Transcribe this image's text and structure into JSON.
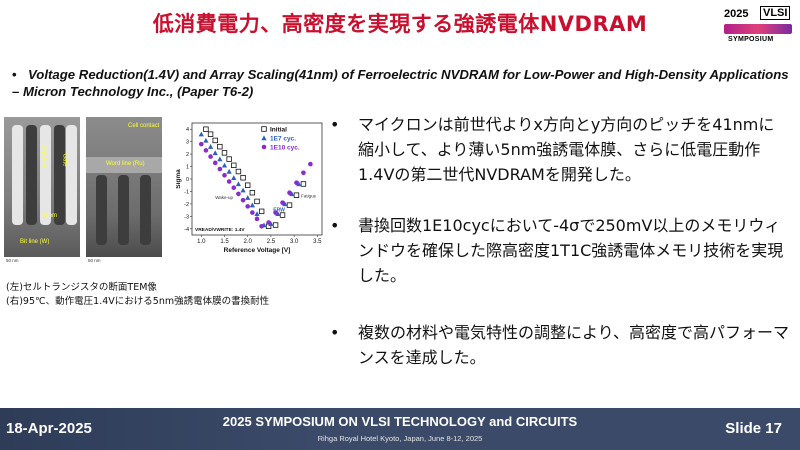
{
  "title": "低消費電力、高密度を実現する強誘電体NVDRAM",
  "logo": {
    "year": "2025",
    "brand": "VLSI",
    "sub": "SYMPOSIUM"
  },
  "headline": {
    "bullet": "•",
    "text": "Voltage Reduction(1.4V) and Array Scaling(41nm) of Ferroelectric NVDRAM for Low-Power and High-Density Applications – Micron Technology Inc., (Paper T6-2)"
  },
  "tem_left": {
    "label_top": "Digit line",
    "label_gate": "Gate",
    "dim": "41nm",
    "bitline": "Bit line (W)",
    "scale": "50 nm"
  },
  "tem_right": {
    "label_contact": "Cell contact",
    "label_wordline": "Word line (Ru)",
    "scale": "50 nm"
  },
  "caption": {
    "line1": "(左)セルトランジスタの断面TEM像",
    "line2": "(右)95℃、動作電圧1.4Vにおける5nm強誘電体膜の書換耐性"
  },
  "chart_data": {
    "type": "scatter",
    "title": "",
    "xlabel": "Reference Voltage [V]",
    "ylabel": "Sigma",
    "xlim": [
      0.8,
      3.6
    ],
    "ylim": [
      -4.5,
      4.5
    ],
    "xticks": [
      "1.0",
      "1.5",
      "2.0",
      "2.5",
      "3.0",
      "3.5"
    ],
    "yticks": [
      "4",
      "3",
      "2",
      "1",
      "0",
      "-1",
      "-2",
      "-3",
      "-4"
    ],
    "legend_position": "top-right",
    "annotations": [
      "Wake-up",
      "ERW",
      "Fatigue",
      "VREAD/VWRITE: 1.4V"
    ],
    "series": [
      {
        "name": "Initial",
        "marker": "open-square",
        "color": "#111111",
        "x": [
          1.1,
          1.2,
          1.3,
          1.4,
          1.5,
          1.6,
          1.7,
          1.8,
          1.9,
          2.0,
          2.1,
          2.2,
          2.3,
          2.45,
          2.6,
          2.75,
          2.9,
          3.05,
          3.2
        ],
        "y": [
          4.0,
          3.6,
          3.1,
          2.6,
          2.1,
          1.6,
          1.1,
          0.6,
          0.1,
          -0.5,
          -1.1,
          -1.8,
          -2.6,
          -3.8,
          -3.7,
          -2.9,
          -2.1,
          -1.3,
          -0.4
        ]
      },
      {
        "name": "1E7 cyc.",
        "marker": "triangle",
        "color": "#2b5fbf",
        "x": [
          1.0,
          1.1,
          1.2,
          1.3,
          1.4,
          1.5,
          1.6,
          1.7,
          1.8,
          1.9,
          2.0,
          2.1,
          2.2,
          2.35,
          2.5,
          2.65,
          2.8,
          2.95,
          3.1
        ],
        "y": [
          3.6,
          3.1,
          2.6,
          2.1,
          1.6,
          1.1,
          0.6,
          0.1,
          -0.4,
          -0.9,
          -1.5,
          -2.1,
          -2.8,
          -3.7,
          -3.6,
          -2.8,
          -2.0,
          -1.2,
          -0.4
        ]
      },
      {
        "name": "1E10 cyc.",
        "marker": "circle",
        "color": "#8a2ad0",
        "x": [
          1.0,
          1.1,
          1.2,
          1.3,
          1.4,
          1.5,
          1.6,
          1.7,
          1.8,
          1.9,
          2.0,
          2.1,
          2.2,
          2.3,
          2.45,
          2.6,
          2.75,
          2.9,
          3.05,
          3.2,
          3.35
        ],
        "y": [
          2.8,
          2.3,
          1.8,
          1.3,
          0.8,
          0.3,
          -0.2,
          -0.7,
          -1.2,
          -1.7,
          -2.2,
          -2.7,
          -3.2,
          -3.8,
          -3.5,
          -2.7,
          -1.9,
          -1.1,
          -0.3,
          0.5,
          1.2
        ]
      }
    ]
  },
  "bullets": [
    {
      "marker": "•",
      "text": "マイクロンは前世代よりx方向とy方向のピッチを41nmに縮小して、より薄い5nm強誘電体膜、さらに低電圧動作1.4Vの第二世代NVDRAMを開発した。"
    },
    {
      "marker": "•",
      "text": "書換回数1E10cycにおいて-4σで250mV以上のメモリウィンドウを確保した際高密度1T1C強誘電体メモリ技術を実現した。"
    },
    {
      "marker": "•",
      "text": "複数の材料や電気特性の調整により、高密度で高パフォーマンスを達成した。"
    }
  ],
  "footer": {
    "date": "18-Apr-2025",
    "conference": "2025 SYMPOSIUM ON VLSI TECHNOLOGY and CIRCUITS",
    "venue": "Rihga Royal Hotel Kyoto, Japan, June 8-12, 2025",
    "slide": "Slide 17"
  }
}
